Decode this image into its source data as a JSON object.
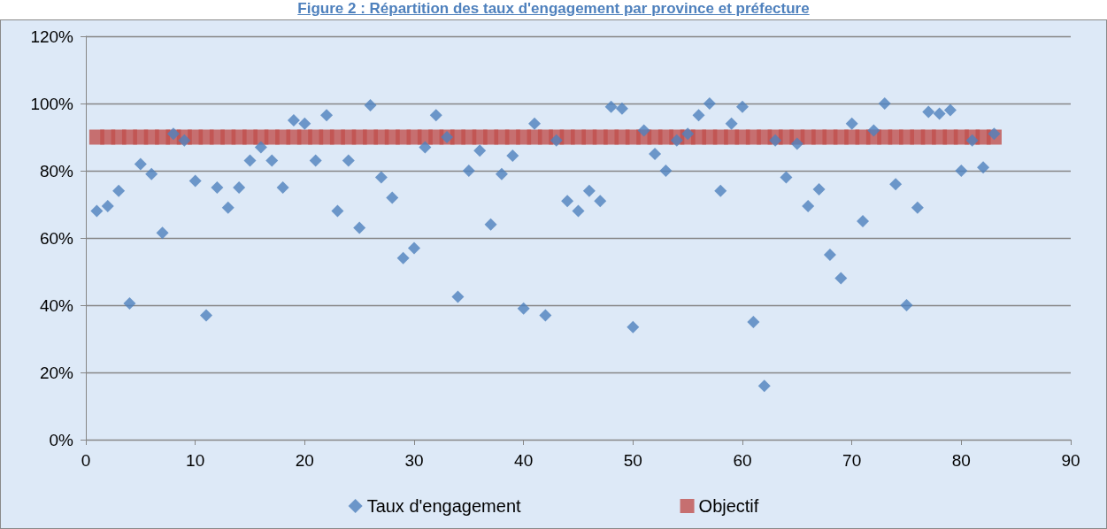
{
  "chart_data": {
    "type": "scatter",
    "title": "Figure 2 : Répartition des taux d'engagement par province et préfecture",
    "xlim": [
      0,
      90
    ],
    "xticks": [
      0,
      10,
      20,
      30,
      40,
      50,
      60,
      70,
      80,
      90
    ],
    "ylim": [
      0,
      120
    ],
    "yticks": [
      {
        "value": 0,
        "label": "0%"
      },
      {
        "value": 20,
        "label": "20%"
      },
      {
        "value": 40,
        "label": "40%"
      },
      {
        "value": 60,
        "label": "60%"
      },
      {
        "value": 80,
        "label": "80%"
      },
      {
        "value": 100,
        "label": "100%"
      },
      {
        "value": 120,
        "label": "120%"
      }
    ],
    "grid": "y",
    "legend": "bottom",
    "series": [
      {
        "name": "Taux d'engagement",
        "color": "#4f81bd",
        "marker": "diamond",
        "x": [
          1,
          2,
          3,
          4,
          5,
          6,
          7,
          8,
          9,
          10,
          11,
          12,
          13,
          14,
          15,
          16,
          17,
          18,
          19,
          20,
          21,
          22,
          23,
          24,
          25,
          26,
          27,
          28,
          29,
          30,
          31,
          32,
          33,
          34,
          35,
          36,
          37,
          38,
          39,
          40,
          41,
          42,
          43,
          44,
          45,
          46,
          47,
          48,
          49,
          50,
          51,
          52,
          53,
          54,
          55,
          56,
          57,
          58,
          59,
          60,
          61,
          62,
          63,
          64,
          65,
          66,
          67,
          68,
          69,
          70,
          71,
          72,
          73,
          74,
          75,
          76,
          77,
          78,
          79,
          80,
          81,
          82,
          83
        ],
        "values": [
          68,
          69.5,
          74,
          40.5,
          82,
          79,
          61.5,
          91,
          89,
          77,
          37,
          75,
          69,
          75,
          83,
          87,
          83,
          75,
          95,
          94,
          83,
          96.5,
          68,
          83,
          63,
          99.5,
          78,
          72,
          54,
          57,
          87,
          96.5,
          90,
          42.5,
          80,
          86,
          64,
          79,
          84.5,
          39,
          94,
          37,
          89,
          71,
          68,
          74,
          71,
          99,
          98.5,
          33.5,
          92,
          85,
          80,
          89,
          91,
          96.5,
          100,
          74,
          94,
          99,
          35,
          16,
          89,
          78,
          88,
          69.5,
          74.5,
          55,
          48,
          94,
          65,
          92,
          100,
          76,
          40,
          69,
          97.5,
          97,
          98,
          80,
          89,
          81,
          91
        ]
      },
      {
        "name": "Objectif",
        "color": "#c0504d",
        "marker": "square",
        "x": [
          1,
          2,
          3,
          4,
          5,
          6,
          7,
          8,
          9,
          10,
          11,
          12,
          13,
          14,
          15,
          16,
          17,
          18,
          19,
          20,
          21,
          22,
          23,
          24,
          25,
          26,
          27,
          28,
          29,
          30,
          31,
          32,
          33,
          34,
          35,
          36,
          37,
          38,
          39,
          40,
          41,
          42,
          43,
          44,
          45,
          46,
          47,
          48,
          49,
          50,
          51,
          52,
          53,
          54,
          55,
          56,
          57,
          58,
          59,
          60,
          61,
          62,
          63,
          64,
          65,
          66,
          67,
          68,
          69,
          70,
          71,
          72,
          73,
          74,
          75,
          76,
          77,
          78,
          79,
          80,
          81,
          82,
          83
        ],
        "values": [
          90,
          90,
          90,
          90,
          90,
          90,
          90,
          90,
          90,
          90,
          90,
          90,
          90,
          90,
          90,
          90,
          90,
          90,
          90,
          90,
          90,
          90,
          90,
          90,
          90,
          90,
          90,
          90,
          90,
          90,
          90,
          90,
          90,
          90,
          90,
          90,
          90,
          90,
          90,
          90,
          90,
          90,
          90,
          90,
          90,
          90,
          90,
          90,
          90,
          90,
          90,
          90,
          90,
          90,
          90,
          90,
          90,
          90,
          90,
          90,
          90,
          90,
          90,
          90,
          90,
          90,
          90,
          90,
          90,
          90,
          90,
          90,
          90,
          90,
          90,
          90,
          90,
          90,
          90,
          90,
          90,
          90,
          90
        ]
      }
    ]
  }
}
